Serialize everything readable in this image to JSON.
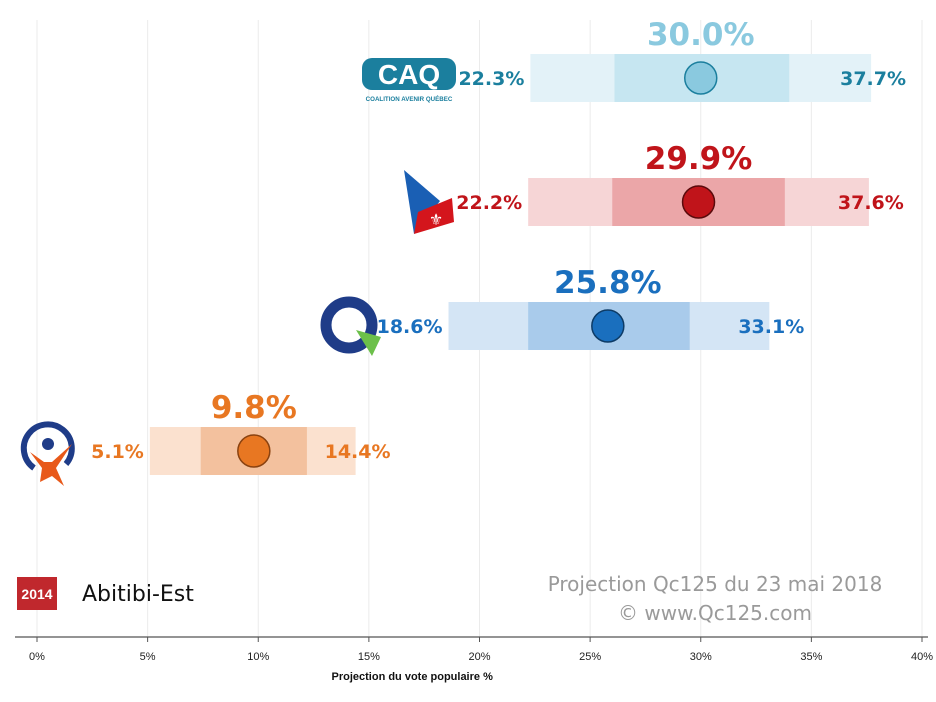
{
  "chart_data": {
    "type": "range-dot",
    "xlabel": "Projection du vote populaire %",
    "xlim": [
      0,
      40
    ],
    "xticks": [
      0,
      5,
      10,
      15,
      20,
      25,
      30,
      35,
      40
    ],
    "xtick_labels": [
      "0%",
      "5%",
      "10%",
      "15%",
      "20%",
      "25%",
      "30%",
      "35%",
      "40%"
    ],
    "series": [
      {
        "party": "CAQ",
        "logo_text": "CAQ",
        "logo_subtext": "COALITION AVENIR QUÉBEC",
        "value": 30.0,
        "low": 22.3,
        "high": 37.7,
        "inner_low": 26.1,
        "inner_high": 34.0,
        "value_label": "30.0%",
        "low_label": "22.3%",
        "high_label": "37.7%",
        "color": "#8ac9df",
        "label_color": "#1b7f9e",
        "outer_fill": "#e3f2f8",
        "inner_fill": "#c6e6f1",
        "dot_stroke": "#1b7f9e"
      },
      {
        "party": "PLQ",
        "value": 29.9,
        "low": 22.2,
        "high": 37.6,
        "inner_low": 26.0,
        "inner_high": 33.8,
        "value_label": "29.9%",
        "low_label": "22.2%",
        "high_label": "37.6%",
        "color": "#c0141a",
        "label_color": "#c0141a",
        "outer_fill": "#f6d5d6",
        "inner_fill": "#eba6a8",
        "dot_stroke": "#5a0a0c"
      },
      {
        "party": "PQ",
        "value": 25.8,
        "low": 18.6,
        "high": 33.1,
        "inner_low": 22.2,
        "inner_high": 29.5,
        "value_label": "25.8%",
        "low_label": "18.6%",
        "high_label": "33.1%",
        "color": "#1a6fbe",
        "label_color": "#1a6fbe",
        "outer_fill": "#d4e5f5",
        "inner_fill": "#a9cbeb",
        "dot_stroke": "#0d3b66"
      },
      {
        "party": "QS",
        "value": 9.8,
        "low": 5.1,
        "high": 14.4,
        "inner_low": 7.4,
        "inner_high": 12.2,
        "value_label": "9.8%",
        "low_label": "5.1%",
        "high_label": "14.4%",
        "color": "#e87722",
        "label_color": "#e87722",
        "outer_fill": "#fbe1cf",
        "inner_fill": "#f3c19e",
        "dot_stroke": "#8a4210"
      }
    ]
  },
  "footer": {
    "year_badge": "2014",
    "riding": "Abitibi-Est",
    "projection_line": "Projection Qc125 du 23 mai 2018",
    "copyright_line": "© www.Qc125.com"
  }
}
